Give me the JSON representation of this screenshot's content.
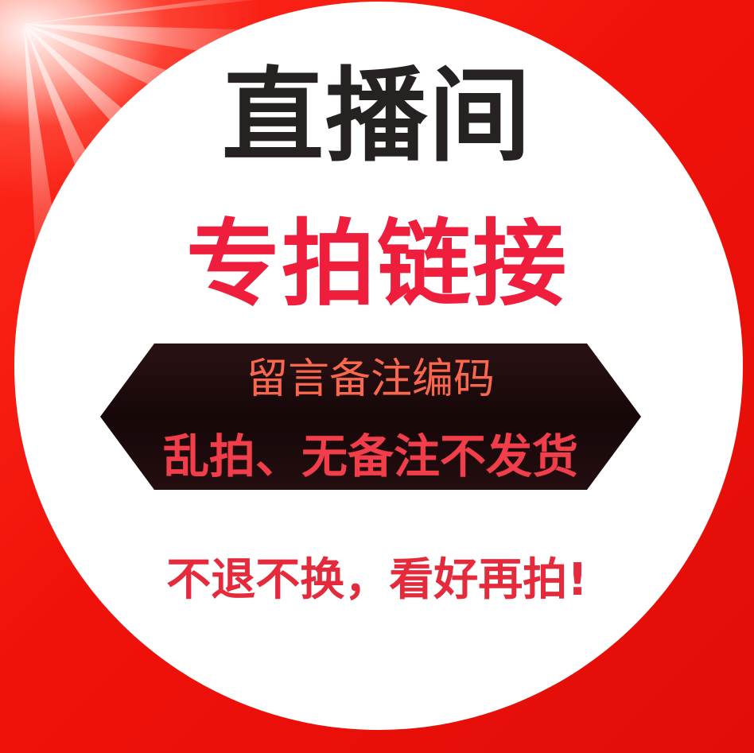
{
  "graphic": {
    "title": "直播间",
    "subtitle": "专拍链接",
    "banner": {
      "line1": "留言备注编码",
      "line2": "乱拍、无备注不发货"
    },
    "footer": "不退不换，看好再拍!"
  },
  "colors": {
    "background_red": "#f0120a",
    "circle_white": "#ffffff",
    "title_dark": "#262222",
    "subtitle_red": "#ee1e3c",
    "banner_fill": "#1a0a0c",
    "banner_line1": "#f9674f",
    "banner_line2": "#f23e4a",
    "footer_red": "#e52a3c"
  }
}
